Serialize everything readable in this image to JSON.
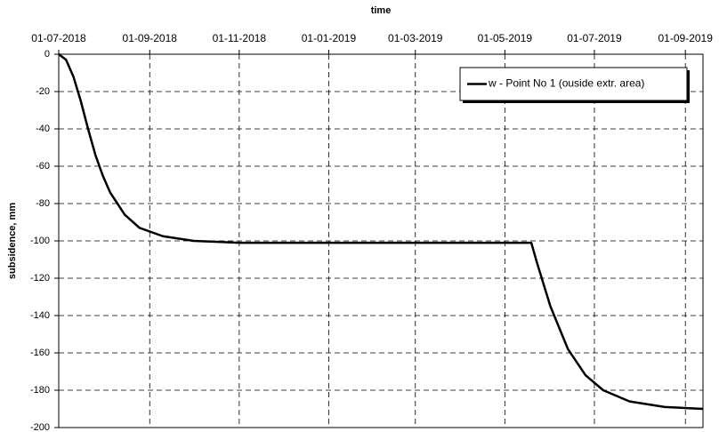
{
  "chart_data": {
    "type": "line",
    "xlabel": "time",
    "ylabel": "subsidence, mm",
    "x": [
      "01-07-2018",
      "06-07-2018",
      "11-07-2018",
      "16-07-2018",
      "21-07-2018",
      "26-07-2018",
      "31-07-2018",
      "05-08-2018",
      "15-08-2018",
      "25-08-2018",
      "10-09-2018",
      "01-10-2018",
      "01-11-2018",
      "19-05-2019",
      "23-05-2019",
      "01-06-2019",
      "13-06-2019",
      "25-06-2019",
      "07-07-2019",
      "25-07-2019",
      "18-08-2019",
      "13-09-2019"
    ],
    "series": [
      {
        "name": "w - Point No 1 (ouside extr. area)",
        "color": "#000000",
        "values": [
          0,
          -3,
          -12,
          -25,
          -40,
          -54,
          -65,
          -74,
          -86,
          -93,
          -97.5,
          -100,
          -101,
          -101,
          -112,
          -135,
          -158,
          -172,
          -180,
          -186,
          -189,
          -190
        ]
      }
    ],
    "xlim": [
      "01-07-2018",
      "13-09-2019"
    ],
    "xticks": [
      "01-07-2018",
      "01-09-2018",
      "01-11-2018",
      "01-01-2019",
      "01-03-2019",
      "01-05-2019",
      "01-07-2019",
      "01-09-2019"
    ],
    "ylim": [
      -200,
      0
    ],
    "yticks": [
      -200,
      -180,
      -160,
      -140,
      -120,
      -100,
      -80,
      -60,
      -40,
      -20,
      0
    ],
    "grid": true,
    "legend": "upper right"
  }
}
